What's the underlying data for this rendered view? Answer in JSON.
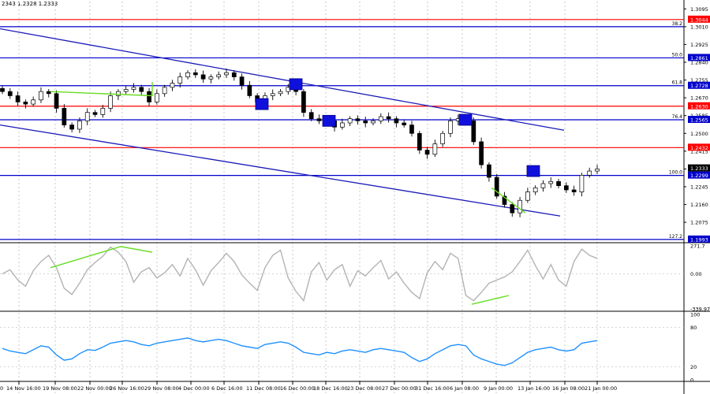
{
  "header": {
    "symbol_info": "2343 1.2328 1.2333"
  },
  "colors": {
    "candle": "#000000",
    "fib_line": "#0000cc",
    "red_level": "#ff0000",
    "channel": "#1a1ab8",
    "divergence": "#66dd22",
    "marker": "#1010dd",
    "osc_line": "#b3b3b3",
    "rsi_line": "#1e90ff",
    "grid": "#c8c8c8",
    "price_box": "#000000"
  },
  "chart_data": [
    {
      "type": "candlestick",
      "panel": "price",
      "ylim": [
        1.1985,
        1.313
      ],
      "y_ticks": [
        "1.3095",
        "1.3010",
        "1.2925",
        "1.2840",
        "1.2755",
        "1.2670",
        "1.2585",
        "1.2500",
        "1.2415",
        "1.2330",
        "1.2245",
        "1.2160",
        "1.2075"
      ],
      "current_price": "1.2333",
      "levels": [
        {
          "price": 1.3044,
          "fib": "",
          "label": "1.3044",
          "kind": "red"
        },
        {
          "price": 1.301,
          "fib": "38.2",
          "label": "",
          "kind": "fib"
        },
        {
          "price": 1.2861,
          "fib": "50.0",
          "label": "1.2861",
          "kind": "fib"
        },
        {
          "price": 1.2728,
          "fib": "61.8",
          "label": "1.2728",
          "kind": "fib"
        },
        {
          "price": 1.263,
          "fib": "",
          "label": "1.2630",
          "kind": "red"
        },
        {
          "price": 1.2565,
          "fib": "76.4",
          "label": "1.2565",
          "kind": "fib"
        },
        {
          "price": 1.2432,
          "fib": "",
          "label": "1.2432",
          "kind": "red"
        },
        {
          "price": 1.2299,
          "fib": "100.0",
          "label": "1.2299",
          "kind": "fib"
        },
        {
          "price": 1.1993,
          "fib": "127.2",
          "label": "1.1993",
          "kind": "fib"
        }
      ],
      "channel": {
        "upper": [
          [
            "14 Nov 16:00",
            1.3
          ],
          [
            "21 Jan 00:00",
            1.2515
          ]
        ],
        "lower": [
          [
            "14 Nov 16:00",
            1.254
          ],
          [
            "21 Jan 00:00",
            1.2105
          ]
        ]
      },
      "divergences": [
        [
          [
            "19 Nov 08:00",
            1.27
          ],
          [
            "29 Nov 08:00",
            1.268
          ],
          [
            "29 Nov 08:00",
            1.2745
          ]
        ],
        [
          [
            "9 Jan 00:00",
            1.224
          ],
          [
            "13 Jan 16:00",
            1.212
          ]
        ]
      ],
      "markers": [
        {
          "at": "11 Dec 08:00",
          "price": 1.264
        },
        {
          "at": "16 Dec 00:00",
          "price": 1.2735
        },
        {
          "at": "18 Dec 16:00",
          "price": 1.256
        },
        {
          "at": "6 Jan 08:00",
          "price": 1.2565
        },
        {
          "at": "13 Jan 16:00",
          "price": 1.232
        }
      ],
      "series": [
        {
          "values": [
            1.27,
            1.268,
            1.265,
            1.264,
            1.266,
            1.27,
            1.269,
            1.262,
            1.254,
            1.252,
            1.256,
            1.26,
            1.259,
            1.262,
            1.268,
            1.27,
            1.271,
            1.272,
            1.27,
            1.265,
            1.269,
            1.272,
            1.274,
            1.277,
            1.279,
            1.278,
            1.276,
            1.277,
            1.278,
            1.279,
            1.277,
            1.273,
            1.268,
            1.265,
            1.268,
            1.269,
            1.27,
            1.272,
            1.27,
            1.26,
            1.257,
            1.256,
            1.256,
            1.253,
            1.255,
            1.257,
            1.256,
            1.255,
            1.256,
            1.258,
            1.257,
            1.255,
            1.254,
            1.25,
            1.242,
            1.24,
            1.245,
            1.25,
            1.256,
            1.257,
            1.256,
            1.246,
            1.235,
            1.229,
            1.22,
            1.216,
            1.212,
            1.218,
            1.222,
            1.224,
            1.226,
            1.227,
            1.225,
            1.223,
            1.222,
            1.23,
            1.232,
            1.233
          ]
        }
      ]
    },
    {
      "type": "line",
      "panel": "oscillator",
      "ylim": [
        -339.978,
        271.7
      ],
      "y_ticks": [
        "271.7",
        "0.00",
        "-339.978"
      ],
      "series": [
        {
          "values": [
            0,
            40,
            -60,
            -120,
            30,
            120,
            180,
            60,
            -140,
            -200,
            -90,
            40,
            110,
            170,
            260,
            210,
            120,
            -80,
            20,
            60,
            -40,
            10,
            90,
            -20,
            150,
            40,
            -110,
            30,
            110,
            200,
            120,
            -10,
            -90,
            -160,
            60,
            180,
            230,
            -40,
            -170,
            -260,
            20,
            110,
            -60,
            40,
            90,
            -120,
            30,
            -20,
            60,
            130,
            -50,
            20,
            -90,
            -180,
            -240,
            10,
            120,
            40,
            200,
            150,
            -210,
            -260,
            -180,
            -90,
            -60,
            -30,
            20,
            120,
            230,
            80,
            -50,
            90,
            -60,
            -120,
            120,
            240,
            180,
            150
          ]
        }
      ]
    },
    {
      "type": "line",
      "panel": "rsi",
      "ylim": [
        0,
        100
      ],
      "y_ticks": [
        "100",
        "80",
        "20",
        "0"
      ],
      "series": [
        {
          "values": [
            48,
            44,
            42,
            40,
            46,
            52,
            50,
            38,
            30,
            32,
            40,
            46,
            45,
            50,
            56,
            58,
            60,
            58,
            54,
            52,
            56,
            58,
            60,
            62,
            64,
            60,
            58,
            60,
            62,
            60,
            56,
            52,
            50,
            48,
            54,
            56,
            58,
            56,
            50,
            42,
            40,
            38,
            42,
            40,
            44,
            46,
            44,
            42,
            46,
            48,
            46,
            44,
            42,
            34,
            28,
            32,
            40,
            46,
            52,
            54,
            52,
            38,
            32,
            28,
            24,
            22,
            26,
            34,
            42,
            46,
            48,
            50,
            46,
            44,
            46,
            56,
            58,
            60
          ]
        }
      ]
    }
  ],
  "x_axis": {
    "labels": [
      "14 Nov 16:00",
      "19 Nov 08:00",
      "22 Nov 00:00",
      "26 Nov 16:00",
      "29 Nov 08:00",
      "4 Dec 00:00",
      "6 Dec 16:00",
      "11 Dec 08:00",
      "16 Dec 00:00",
      "18 Dec 16:00",
      "23 Dec 08:00",
      "27 Dec 00:00",
      "31 Dec 16:00",
      "6 Jan 08:00",
      "9 Jan 00:00",
      "13 Jan 16:00",
      "16 Jan 08:00",
      "21 Jan 00:00"
    ],
    "edge_label": "0"
  }
}
